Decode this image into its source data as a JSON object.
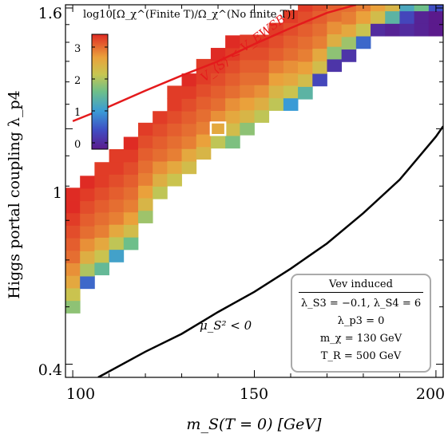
{
  "chart_data": {
    "type": "heatmap",
    "title": "",
    "xlabel": "m_S(T = 0) [GeV]",
    "ylabel": "Higgs portal coupling λ_p4",
    "x_ticks": [
      "100",
      "150",
      "200"
    ],
    "y_ticks": [
      "0.4",
      "1",
      "1.6"
    ],
    "xlim": [
      98,
      202
    ],
    "ylim": [
      0.38,
      1.62
    ],
    "y_scale": "log",
    "colorbar": {
      "label": "log10[Ω_χ^(Finite T)/Ω_χ^(No finite T)]",
      "ticks": [
        "0",
        "1",
        "2",
        "3"
      ],
      "range": [
        -0.2,
        3.4
      ]
    },
    "x_step": 4,
    "y_factor": 1.05,
    "columns": [
      {
        "x": 100,
        "y_start": 0.5,
        "values": [
          1.8,
          2.2,
          2.6,
          2.8,
          3.0,
          3.1,
          3.2,
          3.3,
          3.4,
          3.4
        ]
      },
      {
        "x": 104,
        "y_start": 0.55,
        "values": [
          0.6,
          2.0,
          2.5,
          2.8,
          3.0,
          3.1,
          3.2,
          3.3,
          3.4
        ]
      },
      {
        "x": 108,
        "y_start": 0.58,
        "values": [
          1.5,
          2.2,
          2.6,
          2.9,
          3.0,
          3.1,
          3.2,
          3.3,
          3.3
        ]
      },
      {
        "x": 112,
        "y_start": 0.61,
        "values": [
          1.1,
          2.1,
          2.6,
          2.9,
          3.0,
          3.1,
          3.2,
          3.3,
          3.3
        ]
      },
      {
        "x": 116,
        "y_start": 0.64,
        "values": [
          1.6,
          2.3,
          2.7,
          2.9,
          3.0,
          3.1,
          3.2,
          3.3,
          3.4
        ]
      },
      {
        "x": 120,
        "y_start": 0.71,
        "values": [
          1.9,
          2.4,
          2.7,
          2.9,
          3.0,
          3.1,
          3.2,
          3.3
        ]
      },
      {
        "x": 124,
        "y_start": 0.78,
        "values": [
          2.1,
          2.5,
          2.8,
          3.0,
          3.1,
          3.2,
          3.3
        ]
      },
      {
        "x": 128,
        "y_start": 0.82,
        "values": [
          2.2,
          2.6,
          2.9,
          3.0,
          3.1,
          3.2,
          3.3,
          3.3
        ]
      },
      {
        "x": 132,
        "y_start": 0.86,
        "values": [
          2.3,
          2.6,
          2.9,
          3.0,
          3.1,
          3.2,
          3.3,
          3.4
        ]
      },
      {
        "x": 136,
        "y_start": 0.91,
        "values": [
          2.4,
          2.7,
          2.9,
          3.0,
          3.1,
          3.2,
          3.3,
          3.3
        ]
      },
      {
        "x": 140,
        "y_start": 0.95,
        "values": [
          2.1,
          2.6,
          2.8,
          3.0,
          3.1,
          3.2,
          3.3,
          3.4
        ]
      },
      {
        "x": 144,
        "y_start": 0.95,
        "values": [
          1.7,
          2.3,
          2.6,
          2.8,
          3.0,
          3.1,
          3.2,
          3.3,
          3.4
        ]
      },
      {
        "x": 148,
        "y_start": 1.0,
        "values": [
          1.8,
          2.4,
          2.7,
          2.9,
          3.0,
          3.1,
          3.2,
          3.3
        ]
      },
      {
        "x": 152,
        "y_start": 1.05,
        "values": [
          2.1,
          2.5,
          2.8,
          3.0,
          3.1,
          3.2,
          3.3
        ]
      },
      {
        "x": 156,
        "y_start": 1.1,
        "values": [
          2.1,
          2.4,
          2.7,
          2.9,
          3.1,
          3.2,
          3.3
        ]
      },
      {
        "x": 160,
        "y_start": 1.1,
        "values": [
          1.0,
          2.2,
          2.6,
          2.8,
          3.0,
          3.1,
          3.2,
          3.3
        ]
      },
      {
        "x": 164,
        "y_start": 1.15,
        "values": [
          1.4,
          2.3,
          2.7,
          2.9,
          3.0,
          3.1,
          3.2,
          3.3
        ]
      },
      {
        "x": 168,
        "y_start": 1.21,
        "values": [
          0.3,
          2.3,
          2.6,
          2.9,
          3.0,
          3.1,
          3.2,
          3.3
        ]
      },
      {
        "x": 172,
        "y_start": 1.28,
        "values": [
          0.1,
          1.8,
          2.5,
          2.8,
          3.0,
          3.1,
          3.2,
          3.3
        ]
      },
      {
        "x": 176,
        "y_start": 1.33,
        "values": [
          0.1,
          1.9,
          2.6,
          2.9,
          3.0,
          3.1,
          3.2
        ]
      },
      {
        "x": 180,
        "y_start": 1.4,
        "values": [
          0.6,
          2.2,
          2.7,
          2.9,
          3.1,
          3.2
        ]
      },
      {
        "x": 184,
        "y_start": 1.47,
        "values": [
          0.0,
          2.3,
          2.7,
          3.0,
          3.2
        ]
      },
      {
        "x": 188,
        "y_start": 1.47,
        "values": [
          -0.1,
          1.4,
          2.4,
          2.8,
          3.1
        ]
      },
      {
        "x": 192,
        "y_start": 1.47,
        "values": [
          0.0,
          0.3,
          1.2,
          2.6
        ]
      },
      {
        "x": 196,
        "y_start": 1.47,
        "values": [
          -0.1,
          -0.1,
          1.6,
          2.6
        ]
      },
      {
        "x": 200,
        "y_start": 1.47,
        "values": [
          -0.2,
          -0.2,
          0.4,
          1.0
        ]
      }
    ],
    "highlight": {
      "x": 140,
      "y": 1.0
    },
    "curves": [
      {
        "name": "V_⟨S⟩ < V_EWSB",
        "color": "#e41a1c",
        "x": [
          100,
          110,
          120,
          130,
          140,
          150,
          160,
          170,
          178
        ],
        "y": [
          1.03,
          1.09,
          1.16,
          1.23,
          1.3,
          1.39,
          1.48,
          1.57,
          1.62
        ]
      },
      {
        "name": "μ_S² < 0",
        "color": "#000000",
        "x": [
          107,
          120,
          130,
          140,
          150,
          160,
          170,
          180,
          190,
          200,
          202
        ],
        "y": [
          0.38,
          0.42,
          0.45,
          0.49,
          0.53,
          0.58,
          0.64,
          0.72,
          0.82,
          0.97,
          1.01
        ]
      }
    ],
    "annotations": {
      "red_label": "V_⟨S⟩ < V_EWSB",
      "black_label": "μ_S² < 0"
    },
    "legend": {
      "placement": "bottom-right",
      "header": "Vev induced",
      "lines": [
        "λ_S3 = −0.1, λ_S4 = 6",
        "λ_p3 = 0",
        "m_χ = 130 GeV",
        "T_R = 500 GeV"
      ]
    }
  }
}
